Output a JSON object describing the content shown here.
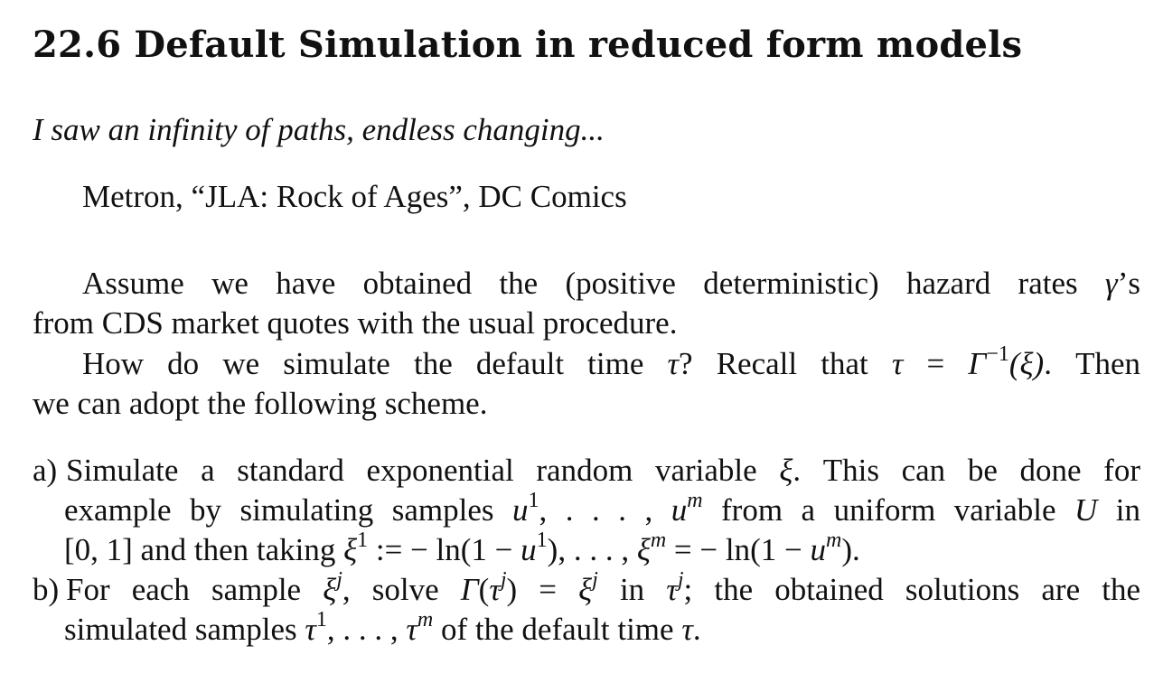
{
  "section": {
    "title": "22.6 Default Simulation in reduced form models"
  },
  "epigraph": {
    "quote": "I saw an infinity of paths, endless changing...",
    "attribution": "Metron, “JLA: Rock of Ages”, DC Comics"
  },
  "body": {
    "p1_line1_a": "Assume we have obtained the (positive deterministic) hazard rates ",
    "p1_sym_gamma": "γ",
    "p1_line1_b": "’s",
    "p1_line2": "from CDS market quotes with the usual procedure.",
    "p2_line1_a": "How do we simulate the default time ",
    "p2_sym_tau": "τ",
    "p2_line1_b": "? Recall that ",
    "p2_eq_lhs": "τ",
    "p2_eq_sign": " = ",
    "p2_eq_Gamma": "Γ",
    "p2_eq_inv": "−1",
    "p2_eq_arg": "(ξ)",
    "p2_line1_c": ". Then",
    "p2_line2": "we can adopt the following scheme."
  },
  "list": {
    "item_a": {
      "marker": "a)",
      "l1_a": "Simulate a standard exponential random variable ",
      "l1_xi": "ξ",
      "l1_b": ". This can be done for",
      "l2_a": "example by simulating samples ",
      "l2_u1": "u",
      "l2_sup1": "1",
      "l2_dots": ", . . . , ",
      "l2_um": "u",
      "l2_supm": "m",
      "l2_b": " from a uniform variable ",
      "l2_U": "U",
      "l2_c": " in",
      "l3_a": "[0, 1] and then taking ",
      "l3_xi1": "ξ",
      "l3_sup1": "1",
      "l3_b": " := − ln(1 − ",
      "l3_u1": "u",
      "l3_sup1b": "1",
      "l3_c": "), . . . , ",
      "l3_xim": "ξ",
      "l3_supm": "m",
      "l3_d": " = − ln(1 − ",
      "l3_um": "u",
      "l3_supm2": "m",
      "l3_e": ")."
    },
    "item_b": {
      "marker": "b)",
      "l1_a": "For each sample ",
      "l1_xi": "ξ",
      "l1_supj": "j",
      "l1_b": ", solve ",
      "l1_Gamma": "Γ",
      "l1_c": "(",
      "l1_tau": "τ",
      "l1_supj2": "j",
      "l1_d": ") = ",
      "l1_xi2": "ξ",
      "l1_supj3": "j",
      "l1_e": " in ",
      "l1_tau2": "τ",
      "l1_supj4": "j",
      "l1_f": "; the obtained solutions are the",
      "l2_a": "simulated samples ",
      "l2_tau1": "τ",
      "l2_sup1": "1",
      "l2_dots": ", . . . , ",
      "l2_taum": "τ",
      "l2_supm": "m",
      "l2_b": " of the default time ",
      "l2_tau": "τ",
      "l2_c": "."
    }
  }
}
